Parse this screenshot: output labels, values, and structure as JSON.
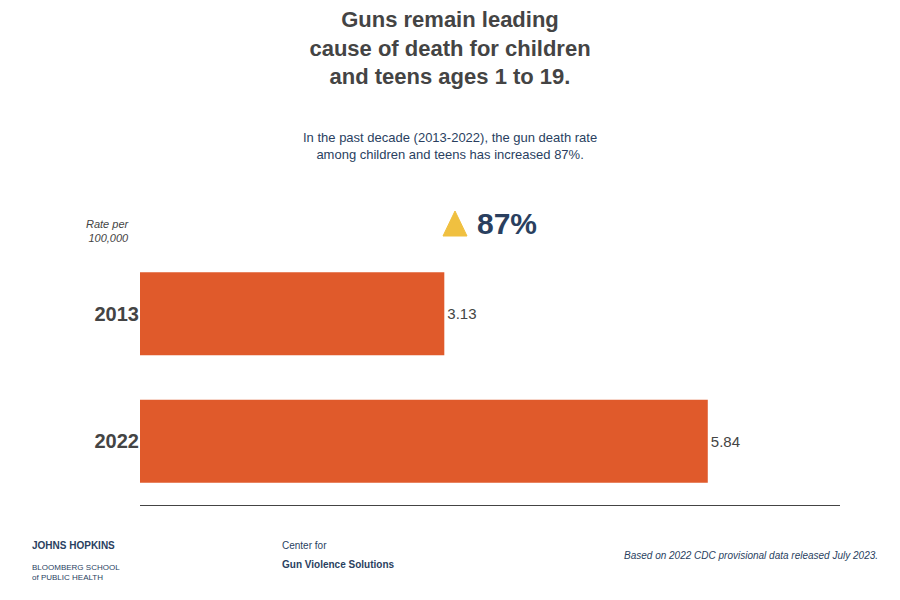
{
  "chart_data": {
    "type": "bar",
    "orientation": "horizontal",
    "title": "Guns remain leading\ncause of death for children\nand teens ages 1 to 19.",
    "subtitle": "In the past decade (2013-2022), the gun death rate\namong children and teens has increased 87%.",
    "categories": [
      "2013",
      "2022"
    ],
    "values": [
      3.13,
      5.84
    ],
    "color": "#e05a2b",
    "xlim": [
      0,
      7.2
    ],
    "grid": false,
    "tick_labels": "y",
    "data_labels": true,
    "annotations": [
      "Rate per\n100,000",
      "87%",
      "JOHNS HOPKINS",
      "BLOOMBERG SCHOOL\nof PUBLIC HEALTH",
      "Center for",
      "Gun Violence Solutions",
      "Based on 2022 CDC provisional data released July 2023."
    ]
  }
}
